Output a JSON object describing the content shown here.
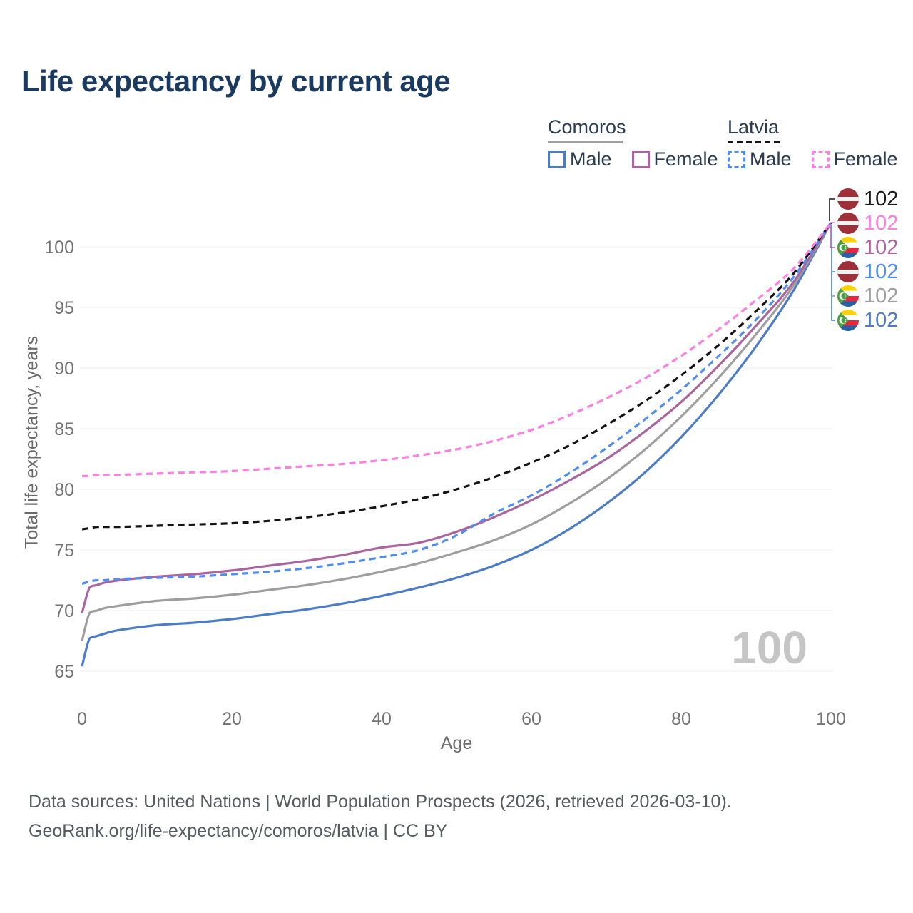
{
  "title": "Life expectancy by current age",
  "watermark": "100",
  "legend": {
    "groups": [
      {
        "name": "Comoros",
        "line_style": "solid",
        "line_color": "#9e9e9e",
        "items": [
          {
            "label": "Male",
            "color": "#4d7cc7",
            "dashed": false
          },
          {
            "label": "Female",
            "color": "#aa659f",
            "dashed": false
          }
        ]
      },
      {
        "name": "Latvia",
        "line_style": "dashed",
        "line_color": "#141414",
        "items": [
          {
            "label": "Male",
            "color": "#4f8df2",
            "dashed": true
          },
          {
            "label": "Female",
            "color": "#fc7fe1",
            "dashed": true
          }
        ]
      }
    ]
  },
  "axes": {
    "x": {
      "label": "Age",
      "ticks": [
        0,
        20,
        40,
        60,
        80,
        100
      ]
    },
    "y": {
      "label": "Total life expectancy, years",
      "ticks": [
        65,
        70,
        75,
        80,
        85,
        90,
        95,
        100
      ]
    }
  },
  "chart_data": {
    "type": "line",
    "title": "Life expectancy by current age",
    "xlabel": "Age",
    "ylabel": "Total life expectancy, years",
    "xlim": [
      0,
      100
    ],
    "ylim": [
      63,
      103
    ],
    "grid": true,
    "legend_position": "top-right",
    "x": [
      0,
      1,
      2,
      3,
      5,
      10,
      15,
      20,
      25,
      30,
      35,
      40,
      45,
      50,
      55,
      60,
      65,
      70,
      75,
      80,
      85,
      90,
      95,
      100
    ],
    "series": [
      {
        "id": "comoros-male",
        "name": "Comoros Male",
        "color": "#4d7cc7",
        "dash": false,
        "values": [
          65.4,
          67.7,
          67.9,
          68.1,
          68.4,
          68.8,
          69.0,
          69.3,
          69.7,
          70.1,
          70.6,
          71.2,
          71.9,
          72.7,
          73.7,
          75.0,
          76.7,
          78.8,
          81.3,
          84.3,
          87.8,
          91.8,
          96.4,
          102
        ]
      },
      {
        "id": "comoros-both",
        "name": "Comoros Both sexes",
        "color": "#9e9e9e",
        "dash": false,
        "values": [
          67.5,
          69.8,
          70.0,
          70.2,
          70.4,
          70.8,
          71.0,
          71.3,
          71.7,
          72.1,
          72.6,
          73.2,
          73.9,
          74.8,
          75.8,
          77.1,
          78.8,
          80.8,
          83.2,
          86.0,
          89.2,
          92.8,
          96.8,
          102
        ]
      },
      {
        "id": "comoros-female",
        "name": "Comoros Female",
        "color": "#aa659f",
        "dash": false,
        "values": [
          69.8,
          71.9,
          72.1,
          72.3,
          72.5,
          72.8,
          73.0,
          73.3,
          73.7,
          74.1,
          74.6,
          75.2,
          75.6,
          76.5,
          77.7,
          79.1,
          80.7,
          82.5,
          84.7,
          87.2,
          90.2,
          93.5,
          97.1,
          102
        ]
      },
      {
        "id": "latvia-male",
        "name": "Latvia Male",
        "color": "#4f8df2",
        "dash": true,
        "values": [
          72.2,
          72.4,
          72.5,
          72.5,
          72.6,
          72.7,
          72.8,
          73.0,
          73.2,
          73.5,
          73.9,
          74.4,
          75.0,
          76.2,
          78.0,
          79.5,
          81.3,
          83.4,
          85.7,
          88.2,
          91.0,
          94.0,
          97.5,
          102
        ]
      },
      {
        "id": "latvia-both",
        "name": "Latvia Both sexes",
        "color": "#141414",
        "dash": true,
        "values": [
          76.7,
          76.8,
          76.9,
          76.9,
          76.9,
          77.0,
          77.1,
          77.2,
          77.4,
          77.7,
          78.1,
          78.6,
          79.2,
          80.0,
          81.0,
          82.2,
          83.6,
          85.3,
          87.2,
          89.4,
          91.9,
          94.7,
          97.8,
          102
        ]
      },
      {
        "id": "latvia-female",
        "name": "Latvia Female",
        "color": "#fc7fe1",
        "dash": true,
        "values": [
          81.1,
          81.1,
          81.2,
          81.2,
          81.2,
          81.3,
          81.4,
          81.5,
          81.7,
          81.9,
          82.1,
          82.4,
          82.8,
          83.3,
          84.0,
          84.9,
          86.1,
          87.5,
          89.1,
          91.0,
          93.2,
          95.6,
          98.2,
          102
        ]
      }
    ]
  },
  "end_labels": [
    {
      "flag": "latvia",
      "value": "102",
      "color": "#1a1a1a"
    },
    {
      "flag": "latvia",
      "value": "102",
      "color": "#fc7fe1"
    },
    {
      "flag": "comoros",
      "value": "102",
      "color": "#aa659f"
    },
    {
      "flag": "latvia",
      "value": "102",
      "color": "#4f8df2"
    },
    {
      "flag": "comoros",
      "value": "102",
      "color": "#9e9e9e"
    },
    {
      "flag": "comoros",
      "value": "102",
      "color": "#4d7cc7"
    }
  ],
  "footer": {
    "line1": "Data sources: United Nations | World Population Prospects (2026, retrieved 2026-03-10).",
    "line2": "GeoRank.org/life-expectancy/comoros/latvia | CC BY"
  }
}
